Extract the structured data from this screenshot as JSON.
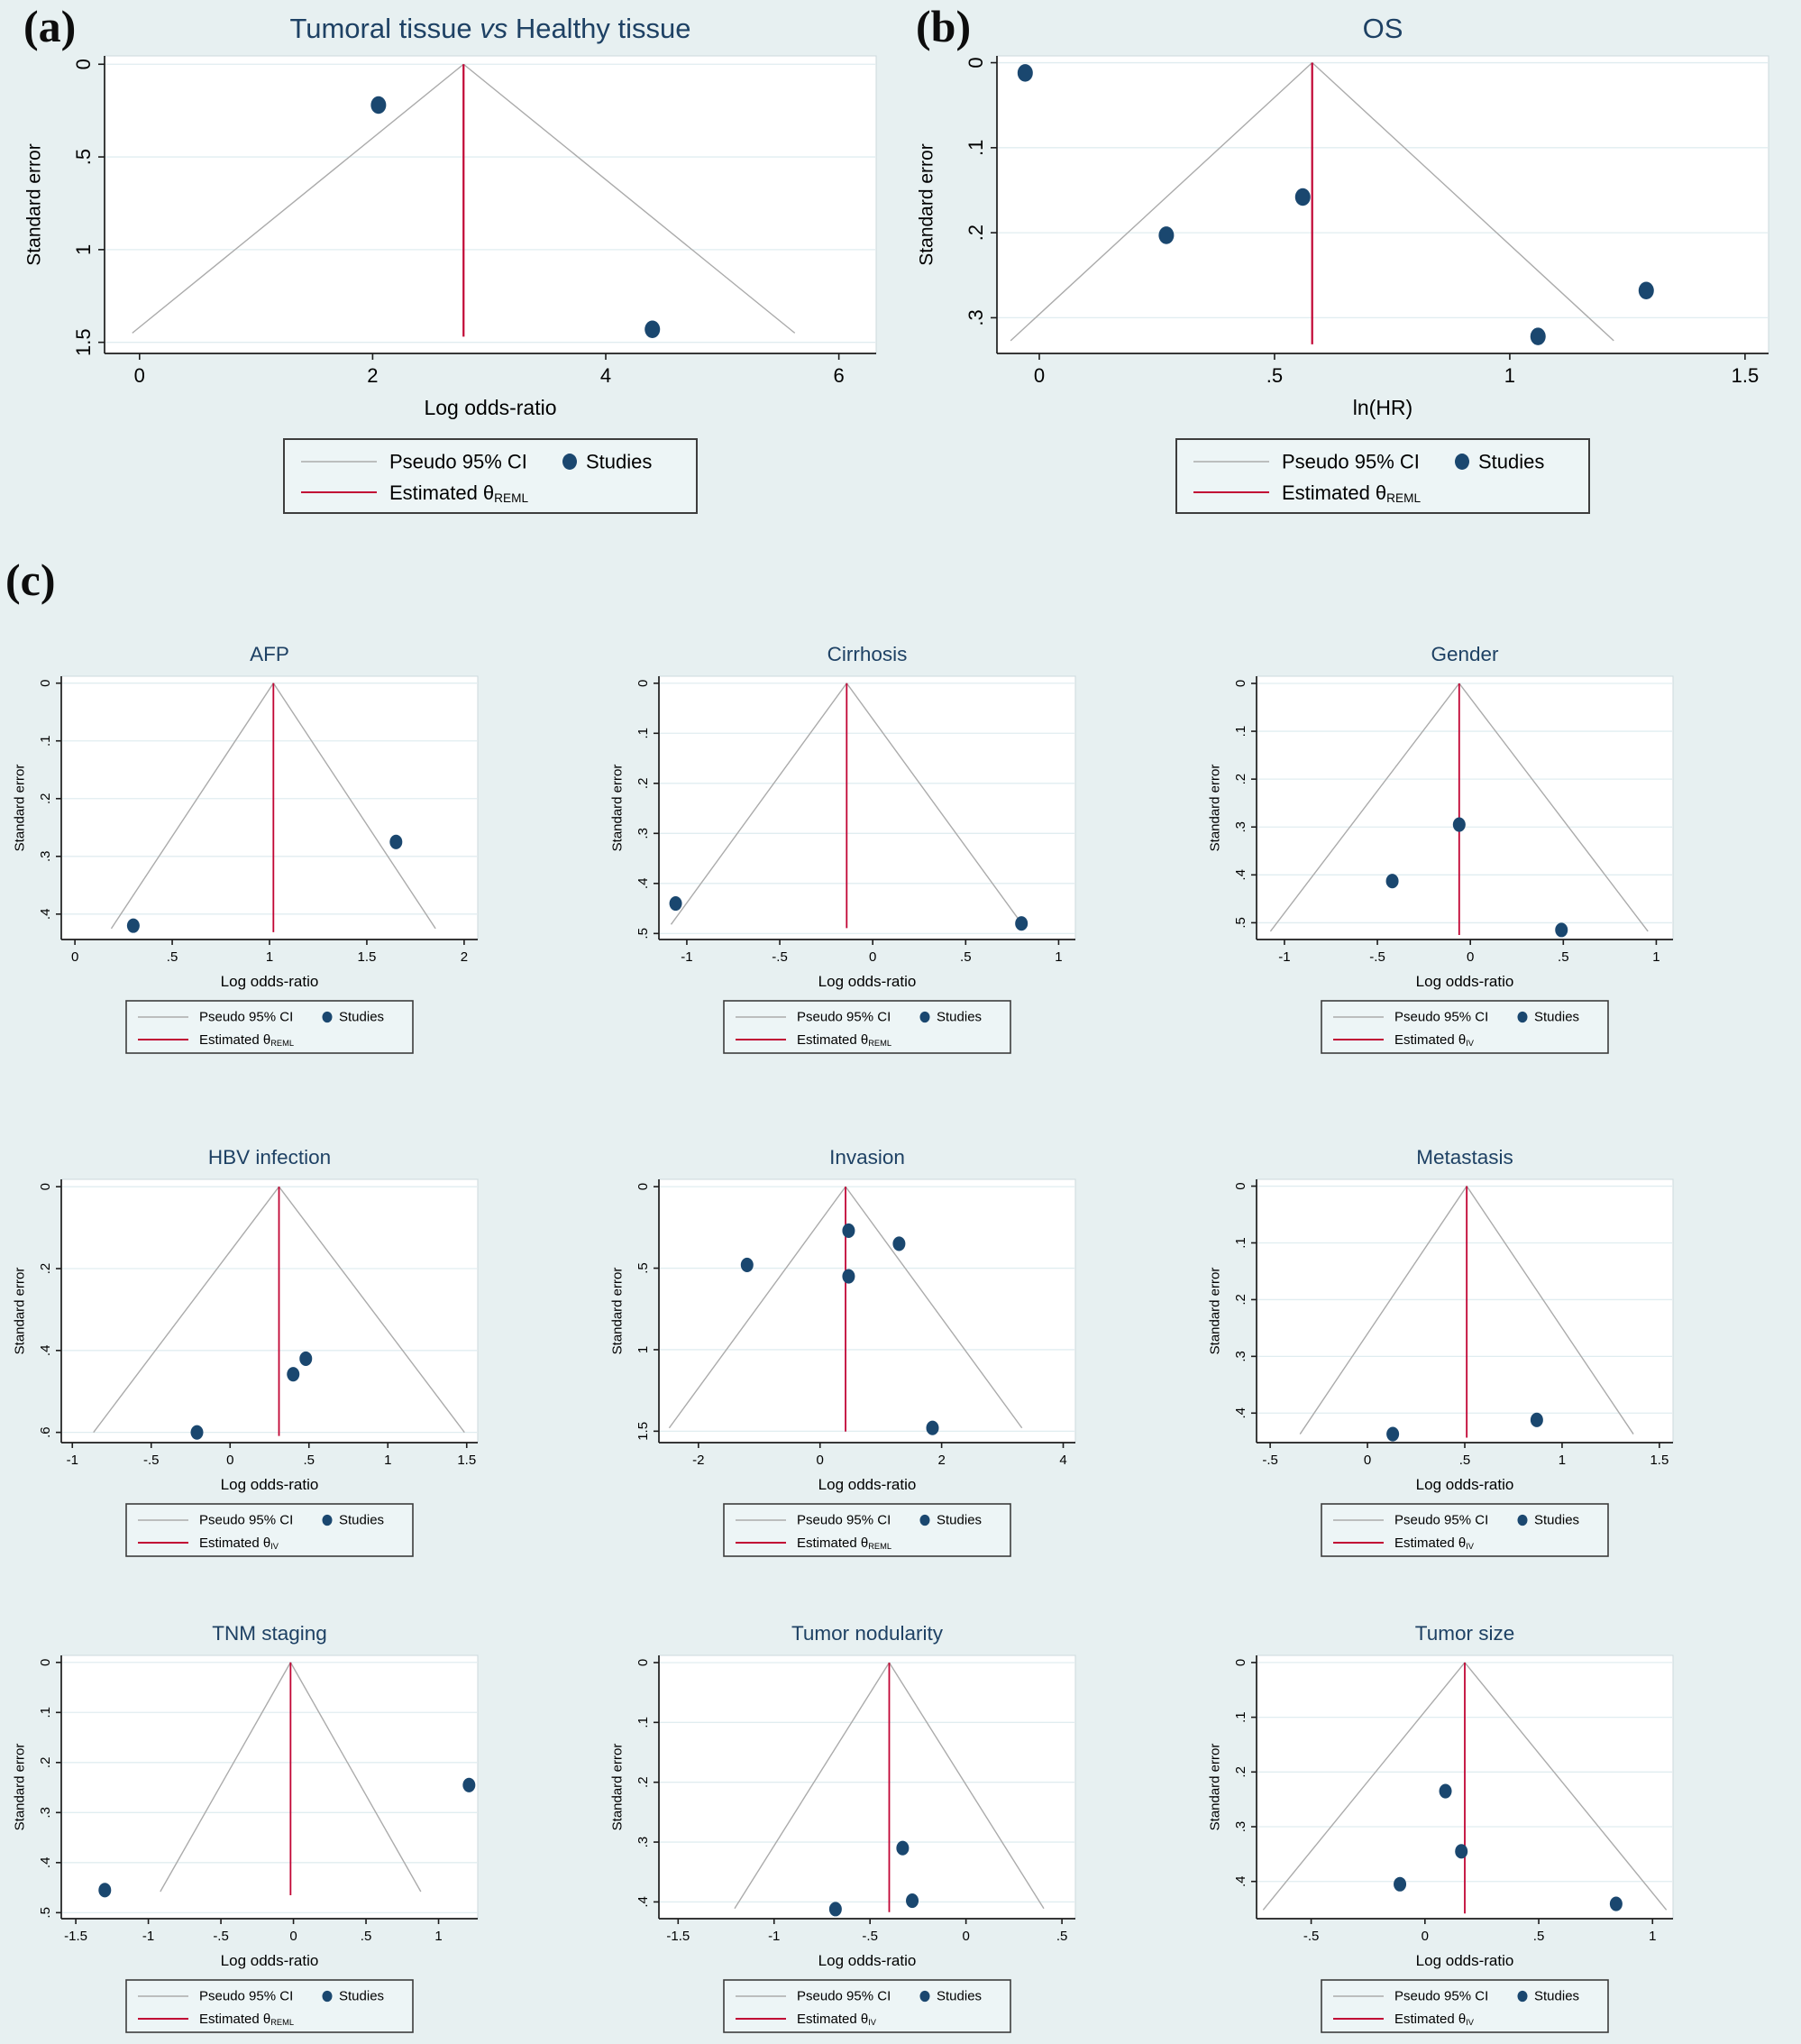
{
  "figure": {
    "panel_labels": [
      {
        "text": "(a)"
      },
      {
        "text": "(b)"
      },
      {
        "text": "(c)"
      }
    ],
    "colors": {
      "background": "#e7f0f1",
      "plot_bg": "#ffffff",
      "plot_border": "#ccdadd",
      "grid": "#e0edf0",
      "axis": "#1c1c1c",
      "text": "#000000",
      "title_navy": "#1e4164",
      "point_navy": "#1a476f",
      "theta_red": "#c10534",
      "ci_gray": "#ababab",
      "legend_bg": "#edf5f6",
      "legend_border": "#3d3d3d"
    }
  },
  "chart_data": [
    {
      "id": "a",
      "type": "funnel-scatter",
      "size": "big",
      "title": "Tumoral tissue vs Healthy tissue",
      "title_parts": [
        {
          "text": "Tumoral tissue ",
          "italic": false
        },
        {
          "text": "vs",
          "italic": true
        },
        {
          "text": " Healthy tissue",
          "italic": false
        }
      ],
      "xlabel": "Log odds-ratio",
      "ylabel": "Standard error",
      "x_tick_vals": [
        0,
        2,
        4,
        6
      ],
      "x_tick_labels": [
        "0",
        "2",
        "4",
        "6"
      ],
      "y_tick_vals": [
        0,
        0.5,
        1,
        1.5
      ],
      "y_tick_labels": [
        "0",
        ".5",
        "1",
        "1.5"
      ],
      "x_range": [
        -0.3,
        6.32
      ],
      "y_range": [
        -0.045,
        1.56
      ],
      "apex_x": 2.78,
      "se_max": 1.45,
      "points": [
        [
          2.05,
          0.22
        ],
        [
          4.4,
          1.43
        ]
      ],
      "legend": {
        "ci_label": "Pseudo 95% CI",
        "studies_label": "Studies",
        "theta_label": "Estimated θ",
        "theta_sub": "REML"
      }
    },
    {
      "id": "b",
      "type": "funnel-scatter",
      "size": "big",
      "title": "OS",
      "xlabel": "ln(HR)",
      "ylabel": "Standard error",
      "x_tick_vals": [
        0,
        0.5,
        1,
        1.5
      ],
      "x_tick_labels": [
        "0",
        ".5",
        "1",
        "1.5"
      ],
      "y_tick_vals": [
        0,
        0.1,
        0.2,
        0.3
      ],
      "y_tick_labels": [
        "0",
        ".1",
        ".2",
        ".3"
      ],
      "x_range": [
        -0.09,
        1.55
      ],
      "y_range": [
        -0.008,
        0.342
      ],
      "apex_x": 0.58,
      "se_max": 0.327,
      "points": [
        [
          -0.03,
          0.012
        ],
        [
          0.27,
          0.203
        ],
        [
          0.56,
          0.158
        ],
        [
          1.06,
          0.322
        ],
        [
          1.29,
          0.268
        ]
      ],
      "legend": {
        "ci_label": "Pseudo 95% CI",
        "studies_label": "Studies",
        "theta_label": "Estimated θ",
        "theta_sub": "REML"
      }
    },
    {
      "id": "afp",
      "type": "funnel-scatter",
      "size": "small",
      "title": "AFP",
      "xlabel": "Log odds-ratio",
      "ylabel": "Standard error",
      "x_tick_vals": [
        0,
        0.5,
        1,
        1.5,
        2
      ],
      "x_tick_labels": [
        "0",
        ".5",
        "1",
        "1.5",
        "2"
      ],
      "y_tick_vals": [
        0,
        0.1,
        0.2,
        0.3,
        0.4
      ],
      "y_tick_labels": [
        "0",
        ".1",
        ".2",
        ".3",
        ".4"
      ],
      "x_range": [
        -0.07,
        2.07
      ],
      "y_range": [
        -0.012,
        0.444
      ],
      "apex_x": 1.02,
      "se_max": 0.425,
      "points": [
        [
          0.3,
          0.42
        ],
        [
          1.65,
          0.275
        ]
      ],
      "legend": {
        "ci_label": "Pseudo 95% CI",
        "studies_label": "Studies",
        "theta_label": "Estimated θ",
        "theta_sub": "REML"
      }
    },
    {
      "id": "cirrhosis",
      "type": "funnel-scatter",
      "size": "small",
      "title": "Cirrhosis",
      "xlabel": "Log odds-ratio",
      "ylabel": "Standard error",
      "x_tick_vals": [
        -1,
        -0.5,
        0,
        0.5,
        1
      ],
      "x_tick_labels": [
        "-1",
        "-.5",
        "0",
        ".5",
        "1"
      ],
      "y_tick_vals": [
        0,
        0.1,
        0.2,
        0.3,
        0.4,
        0.5
      ],
      "y_tick_labels": [
        "0",
        ".1",
        ".2",
        ".3",
        ".4",
        ".5"
      ],
      "x_range": [
        -1.15,
        1.09
      ],
      "y_range": [
        -0.014,
        0.512
      ],
      "apex_x": -0.14,
      "se_max": 0.482,
      "points": [
        [
          -1.06,
          0.44
        ],
        [
          0.8,
          0.48
        ]
      ],
      "legend": {
        "ci_label": "Pseudo 95% CI",
        "studies_label": "Studies",
        "theta_label": "Estimated θ",
        "theta_sub": "REML"
      }
    },
    {
      "id": "gender",
      "type": "funnel-scatter",
      "size": "small",
      "title": "Gender",
      "xlabel": "Log odds-ratio",
      "ylabel": "Standard error",
      "x_tick_vals": [
        -1,
        -0.5,
        0,
        0.5,
        1
      ],
      "x_tick_labels": [
        "-1",
        "-.5",
        "0",
        ".5",
        "1"
      ],
      "y_tick_vals": [
        0,
        0.1,
        0.2,
        0.3,
        0.4,
        0.5
      ],
      "y_tick_labels": [
        "0",
        ".1",
        ".2",
        ".3",
        ".4",
        ".5"
      ],
      "x_range": [
        -1.15,
        1.09
      ],
      "y_range": [
        -0.015,
        0.535
      ],
      "apex_x": -0.06,
      "se_max": 0.518,
      "points": [
        [
          -0.42,
          0.413
        ],
        [
          -0.06,
          0.295
        ],
        [
          0.49,
          0.515
        ]
      ],
      "legend": {
        "ci_label": "Pseudo 95% CI",
        "studies_label": "Studies",
        "theta_label": "Estimated θ",
        "theta_sub": "IV"
      }
    },
    {
      "id": "hbv",
      "type": "funnel-scatter",
      "size": "small",
      "title": "HBV infection",
      "xlabel": "Log odds-ratio",
      "ylabel": "Standard error",
      "x_tick_vals": [
        -1,
        -0.5,
        0,
        0.5,
        1,
        1.5
      ],
      "x_tick_labels": [
        "-1",
        "-.5",
        "0",
        ".5",
        "1",
        "1.5"
      ],
      "y_tick_vals": [
        0,
        0.2,
        0.4,
        0.6
      ],
      "y_tick_labels": [
        "0",
        ".2",
        ".4",
        ".6"
      ],
      "x_range": [
        -1.07,
        1.57
      ],
      "y_range": [
        -0.018,
        0.625
      ],
      "apex_x": 0.31,
      "se_max": 0.6,
      "points": [
        [
          -0.21,
          0.6
        ],
        [
          0.4,
          0.458
        ],
        [
          0.48,
          0.42
        ]
      ],
      "legend": {
        "ci_label": "Pseudo 95% CI",
        "studies_label": "Studies",
        "theta_label": "Estimated θ",
        "theta_sub": "IV"
      }
    },
    {
      "id": "invasion",
      "type": "funnel-scatter",
      "size": "small",
      "title": "Invasion",
      "xlabel": "Log odds-ratio",
      "ylabel": "Standard error",
      "x_tick_vals": [
        -2,
        0,
        2,
        4
      ],
      "x_tick_labels": [
        "-2",
        "0",
        "2",
        "4"
      ],
      "y_tick_vals": [
        0,
        0.5,
        1,
        1.5
      ],
      "y_tick_labels": [
        "0",
        ".5",
        "1",
        "1.5"
      ],
      "x_range": [
        -2.65,
        4.2
      ],
      "y_range": [
        -0.045,
        1.57
      ],
      "apex_x": 0.42,
      "se_max": 1.48,
      "points": [
        [
          -1.2,
          0.48
        ],
        [
          0.47,
          0.27
        ],
        [
          0.47,
          0.55
        ],
        [
          1.3,
          0.35
        ],
        [
          1.85,
          1.48
        ]
      ],
      "legend": {
        "ci_label": "Pseudo 95% CI",
        "studies_label": "Studies",
        "theta_label": "Estimated θ",
        "theta_sub": "REML"
      }
    },
    {
      "id": "metastasis",
      "type": "funnel-scatter",
      "size": "small",
      "title": "Metastasis",
      "xlabel": "Log odds-ratio",
      "ylabel": "Standard error",
      "x_tick_vals": [
        -0.5,
        0,
        0.5,
        1,
        1.5
      ],
      "x_tick_labels": [
        "-.5",
        "0",
        ".5",
        "1",
        "1.5"
      ],
      "y_tick_vals": [
        0,
        0.1,
        0.2,
        0.3,
        0.4
      ],
      "y_tick_labels": [
        "0",
        ".1",
        ".2",
        ".3",
        ".4"
      ],
      "x_range": [
        -0.57,
        1.57
      ],
      "y_range": [
        -0.012,
        0.452
      ],
      "apex_x": 0.51,
      "se_max": 0.437,
      "points": [
        [
          0.13,
          0.437
        ],
        [
          0.87,
          0.412
        ]
      ],
      "legend": {
        "ci_label": "Pseudo 95% CI",
        "studies_label": "Studies",
        "theta_label": "Estimated θ",
        "theta_sub": "IV"
      }
    },
    {
      "id": "tnm",
      "type": "funnel-scatter",
      "size": "small",
      "title": "TNM staging",
      "xlabel": "Log odds-ratio",
      "ylabel": "Standard error",
      "x_tick_vals": [
        -1.5,
        -1,
        -0.5,
        0,
        0.5,
        1
      ],
      "x_tick_labels": [
        "-1.5",
        "-1",
        "-.5",
        "0",
        ".5",
        "1"
      ],
      "y_tick_vals": [
        0,
        0.1,
        0.2,
        0.3,
        0.4,
        0.5
      ],
      "y_tick_labels": [
        "0",
        ".1",
        ".2",
        ".3",
        ".4",
        ".5"
      ],
      "x_range": [
        -1.6,
        1.27
      ],
      "y_range": [
        -0.014,
        0.512
      ],
      "apex_x": -0.02,
      "se_max": 0.458,
      "points": [
        [
          -1.3,
          0.455
        ],
        [
          1.21,
          0.245
        ]
      ],
      "legend": {
        "ci_label": "Pseudo 95% CI",
        "studies_label": "Studies",
        "theta_label": "Estimated θ",
        "theta_sub": "REML"
      }
    },
    {
      "id": "nodularity",
      "type": "funnel-scatter",
      "size": "small",
      "title": "Tumor nodularity",
      "xlabel": "Log odds-ratio",
      "ylabel": "Standard error",
      "x_tick_vals": [
        -1.5,
        -1,
        -0.5,
        0,
        0.5
      ],
      "x_tick_labels": [
        "-1.5",
        "-1",
        "-.5",
        "0",
        ".5"
      ],
      "y_tick_vals": [
        0,
        0.1,
        0.2,
        0.3,
        0.4
      ],
      "y_tick_labels": [
        "0",
        ".1",
        ".2",
        ".3",
        ".4"
      ],
      "x_range": [
        -1.6,
        0.57
      ],
      "y_range": [
        -0.012,
        0.428
      ],
      "apex_x": -0.4,
      "se_max": 0.411,
      "points": [
        [
          -0.68,
          0.412
        ],
        [
          -0.33,
          0.31
        ],
        [
          -0.28,
          0.398
        ]
      ],
      "legend": {
        "ci_label": "Pseudo 95% CI",
        "studies_label": "Studies",
        "theta_label": "Estimated θ",
        "theta_sub": "IV"
      }
    },
    {
      "id": "tumor_size",
      "type": "funnel-scatter",
      "size": "small",
      "title": "Tumor size",
      "xlabel": "Log odds-ratio",
      "ylabel": "Standard error",
      "x_tick_vals": [
        -0.5,
        0,
        0.5,
        1
      ],
      "x_tick_labels": [
        "-.5",
        "0",
        ".5",
        "1"
      ],
      "y_tick_vals": [
        0,
        0.1,
        0.2,
        0.3,
        0.4
      ],
      "y_tick_labels": [
        "0",
        ".1",
        ".2",
        ".3",
        ".4"
      ],
      "x_range": [
        -0.74,
        1.09
      ],
      "y_range": [
        -0.013,
        0.468
      ],
      "apex_x": 0.175,
      "se_max": 0.452,
      "points": [
        [
          -0.11,
          0.405
        ],
        [
          0.09,
          0.235
        ],
        [
          0.16,
          0.345
        ],
        [
          0.84,
          0.441
        ]
      ],
      "legend": {
        "ci_label": "Pseudo 95% CI",
        "studies_label": "Studies",
        "theta_label": "Estimated θ",
        "theta_sub": "IV"
      }
    }
  ]
}
